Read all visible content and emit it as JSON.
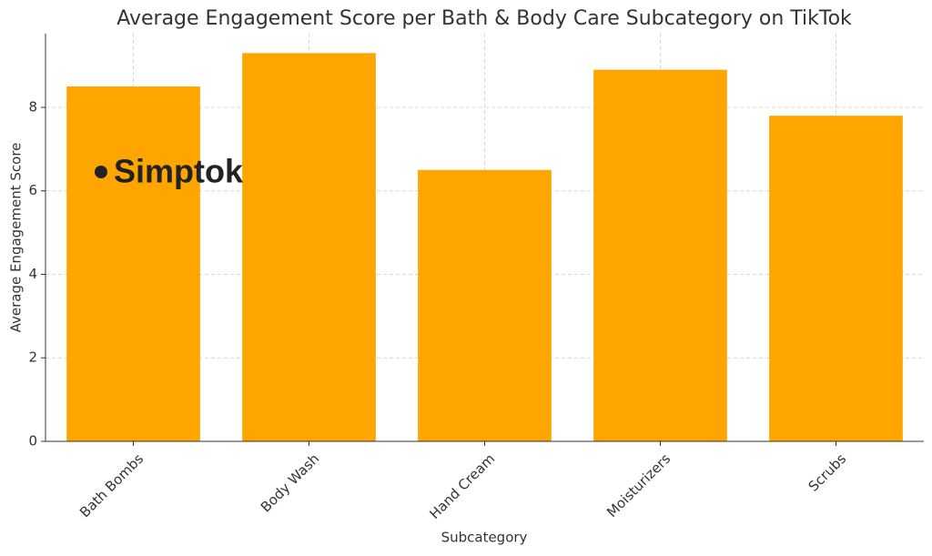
{
  "chart_data": {
    "type": "bar",
    "title": "Average Engagement Score per Bath & Body Care Subcategory on TikTok",
    "x_label": "Subcategory",
    "y_label": "Average Engagement Score",
    "categories": [
      "Bath Bombs",
      "Body Wash",
      "Hand Cream",
      "Moisturizers",
      "Scrubs"
    ],
    "values": [
      8.5,
      9.3,
      6.5,
      8.9,
      7.8
    ],
    "color": "#ffa500",
    "ylim": [
      0,
      9.765
    ],
    "yticks": [
      0,
      2,
      4,
      6,
      8
    ],
    "grid": true,
    "watermark": "Simptok"
  }
}
